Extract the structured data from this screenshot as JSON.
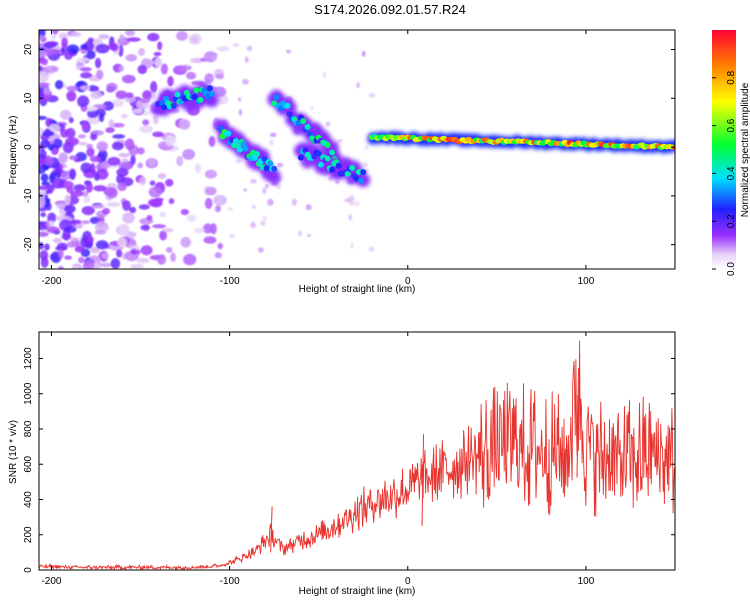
{
  "title": "S174.2026.092.01.57.R24",
  "chart_data": [
    {
      "type": "heatmap",
      "name": "spectrogram",
      "xlabel": "Height of straight line (km)",
      "ylabel": "Frequency (Hz)",
      "xlim": [
        -207,
        150
      ],
      "ylim": [
        -25,
        24
      ],
      "xticks": [
        -200,
        -100,
        0,
        100
      ],
      "yticks": [
        -20,
        -10,
        0,
        10,
        20
      ],
      "colorbar": {
        "label": "Normalized spectral amplitude",
        "range": [
          0.0,
          1.0
        ],
        "ticks": [
          "0.0",
          "0.2",
          "0.4",
          "0.6",
          "0.8"
        ],
        "tick_values": [
          0.0,
          0.2,
          0.4,
          0.6,
          0.8
        ]
      },
      "ridge_segments": [
        {
          "x": [
            -140,
            -110
          ],
          "y": [
            9,
            11
          ]
        },
        {
          "x": [
            -105,
            -75
          ],
          "y": [
            3,
            -5
          ]
        },
        {
          "x": [
            -75,
            -40
          ],
          "y": [
            10,
            -2
          ]
        },
        {
          "x": [
            -60,
            -25
          ],
          "y": [
            -1,
            -6
          ]
        },
        {
          "x": [
            -20,
            150
          ],
          "y": [
            2,
            0
          ]
        }
      ],
      "ridge_peak_values": [
        0.3,
        0.35,
        0.3,
        0.25,
        0.95
      ]
    },
    {
      "type": "line",
      "name": "snr",
      "xlabel": "Height of straight line (km)",
      "ylabel": "SNR (10 * v/v)",
      "xlim": [
        -207,
        150
      ],
      "ylim": [
        0,
        1350
      ],
      "xticks": [
        -200,
        -100,
        0,
        100
      ],
      "yticks": [
        0,
        200,
        400,
        600,
        800,
        1000,
        1200
      ],
      "color": "#e8342e",
      "x": [
        -207,
        -180,
        -150,
        -120,
        -105,
        -95,
        -85,
        -77,
        -70,
        -60,
        -50,
        -40,
        -30,
        -20,
        -10,
        0,
        8,
        20,
        30,
        40,
        50,
        60,
        70,
        80,
        90,
        95,
        100,
        110,
        120,
        130,
        140,
        150
      ],
      "y": [
        20,
        15,
        15,
        15,
        25,
        60,
        110,
        200,
        120,
        170,
        200,
        260,
        320,
        380,
        420,
        460,
        500,
        560,
        610,
        650,
        690,
        700,
        690,
        660,
        650,
        1050,
        700,
        640,
        620,
        650,
        650,
        620
      ],
      "annotations": [
        {
          "x": -77,
          "y": 360
        },
        {
          "x": 8,
          "y": 770
        },
        {
          "x": 95,
          "y": 1145
        }
      ]
    }
  ]
}
